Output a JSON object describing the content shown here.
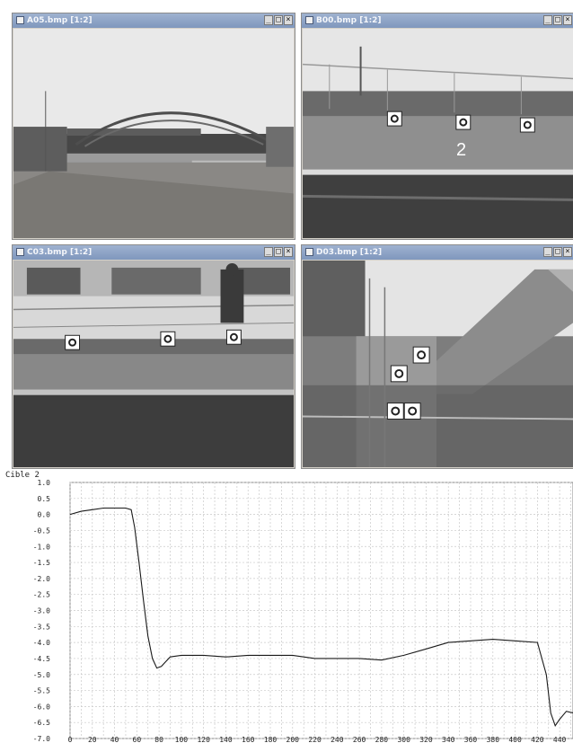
{
  "windows": [
    {
      "id": "a05",
      "title": "A05.bmp [1:2]"
    },
    {
      "id": "b00",
      "title": "B00.bmp [1:2]"
    },
    {
      "id": "c03",
      "title": "C03.bmp [1:2]"
    },
    {
      "id": "d03",
      "title": "D03.bmp [1:2]"
    }
  ],
  "window_buttons": {
    "minimize": "_",
    "maximize": "□",
    "close": "×"
  },
  "scene_b00_label": "2",
  "colors": {
    "title_bar": "#8ea3c6",
    "plot_line": "#1a1a1a",
    "grid": "#c9c9c9"
  },
  "chart_data": {
    "type": "line",
    "title": "Cible 2",
    "xlabel": "",
    "ylabel": "",
    "xlim": [
      0,
      452
    ],
    "ylim": [
      -7.0,
      1.0
    ],
    "x_ticks": [
      0,
      20,
      40,
      60,
      80,
      100,
      120,
      140,
      160,
      180,
      200,
      220,
      240,
      260,
      280,
      300,
      320,
      340,
      360,
      380,
      400,
      420,
      440
    ],
    "y_ticks": [
      "1.0",
      "0.5",
      "0.0",
      "-0.5",
      "-1.0",
      "-1.5",
      "-2.0",
      "-2.5",
      "-3.0",
      "-3.5",
      "-4.0",
      "-4.5",
      "-5.0",
      "-5.5",
      "-6.0",
      "-6.5",
      "-7.0"
    ],
    "grid": true,
    "series": [
      {
        "values": {
          "x": [
            0,
            10,
            20,
            30,
            40,
            50,
            55,
            58,
            62,
            66,
            70,
            74,
            78,
            82,
            86,
            90,
            100,
            120,
            140,
            160,
            180,
            200,
            220,
            240,
            260,
            280,
            300,
            320,
            340,
            360,
            380,
            400,
            420,
            428,
            432,
            436,
            440,
            446,
            452
          ],
          "y": [
            0.0,
            0.1,
            0.15,
            0.2,
            0.2,
            0.2,
            0.15,
            -0.4,
            -1.5,
            -2.7,
            -3.8,
            -4.5,
            -4.8,
            -4.75,
            -4.6,
            -4.45,
            -4.4,
            -4.4,
            -4.45,
            -4.4,
            -4.4,
            -4.4,
            -4.5,
            -4.5,
            -4.5,
            -4.55,
            -4.4,
            -4.2,
            -4.0,
            -3.95,
            -3.9,
            -3.95,
            -4.0,
            -5.0,
            -6.2,
            -6.6,
            -6.4,
            -6.15,
            -6.2
          ]
        }
      }
    ]
  }
}
